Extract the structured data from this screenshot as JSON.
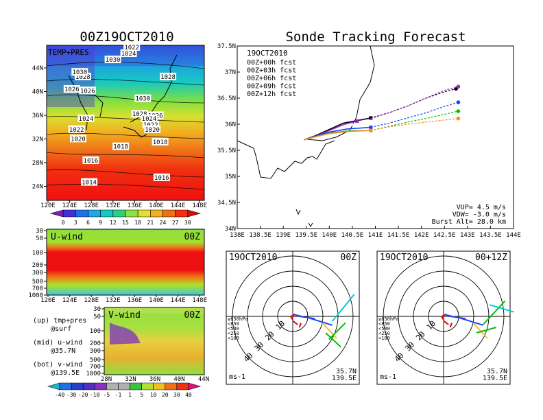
{
  "left": {
    "title": "00Z19OCT2010",
    "map_label": "TEMP+PRES",
    "lon_ticks": [
      "120E",
      "124E",
      "128E",
      "132E",
      "136E",
      "140E",
      "144E",
      "148E"
    ],
    "lat_ticks": [
      "44N",
      "40N",
      "36N",
      "32N",
      "28N",
      "24N"
    ],
    "isobars": [
      {
        "label": "1022",
        "col": 0.54,
        "row": 0.0
      },
      {
        "label": "1024",
        "col": 0.52,
        "row": 0.04
      },
      {
        "label": "1030",
        "col": 0.42,
        "row": 0.08
      },
      {
        "label": "1028",
        "col": 0.23,
        "row": 0.19
      },
      {
        "label": "1030",
        "col": 0.21,
        "row": 0.16
      },
      {
        "label": "1028",
        "col": 0.77,
        "row": 0.19
      },
      {
        "label": "1026",
        "col": 0.16,
        "row": 0.27
      },
      {
        "label": "1026",
        "col": 0.26,
        "row": 0.28
      },
      {
        "label": "1030",
        "col": 0.61,
        "row": 0.33
      },
      {
        "label": "1024",
        "col": 0.25,
        "row": 0.46
      },
      {
        "label": "1028",
        "col": 0.59,
        "row": 0.43
      },
      {
        "label": "1026",
        "col": 0.69,
        "row": 0.44
      },
      {
        "label": "1024",
        "col": 0.65,
        "row": 0.46
      },
      {
        "label": "1022",
        "col": 0.66,
        "row": 0.5
      },
      {
        "label": "1022",
        "col": 0.19,
        "row": 0.53
      },
      {
        "label": "1020",
        "col": 0.67,
        "row": 0.53
      },
      {
        "label": "1020",
        "col": 0.2,
        "row": 0.59
      },
      {
        "label": "1018",
        "col": 0.72,
        "row": 0.61
      },
      {
        "label": "1018",
        "col": 0.47,
        "row": 0.64
      },
      {
        "label": "1016",
        "col": 0.28,
        "row": 0.73
      },
      {
        "label": "1016",
        "col": 0.73,
        "row": 0.84
      },
      {
        "label": "1014",
        "col": 0.27,
        "row": 0.87
      }
    ],
    "temp_colorbar": [
      "0",
      "3",
      "6",
      "9",
      "12",
      "15",
      "18",
      "21",
      "24",
      "27",
      "30"
    ],
    "uwind": {
      "title": "U-wind",
      "time": "00Z",
      "levels": [
        "30",
        "50",
        "100",
        "200",
        "300",
        "500",
        "700",
        "1000"
      ],
      "lon_ticks": [
        "120E",
        "124E",
        "128E",
        "132E",
        "136E",
        "140E",
        "144E",
        "148E"
      ]
    },
    "vwind": {
      "title": "V-wind",
      "time": "00Z",
      "levels": [
        "30",
        "50",
        "100",
        "200",
        "300",
        "500",
        "700",
        "1000"
      ],
      "lat_ticks": [
        "28N",
        "32N",
        "36N",
        "40N",
        "44N"
      ]
    },
    "notes": [
      {
        "a": "(up) tmp+pres",
        "b": "@surf"
      },
      {
        "a": "(mid) u-wind",
        "b": "@35.7N"
      },
      {
        "a": "(bot) v-wind",
        "b": "@139.5E"
      }
    ],
    "wind_colorbar": [
      "-40",
      "-30",
      "-20",
      "-10",
      "-5",
      "-1",
      "1",
      "5",
      "10",
      "20",
      "30",
      "40"
    ]
  },
  "track": {
    "title": "Sonde Tracking Forecast",
    "date": "19OCT2010",
    "lon_ticks": [
      "138E",
      "138.5E",
      "139E",
      "139.5E",
      "140E",
      "140.5E",
      "141E",
      "141.5E",
      "142E",
      "142.5E",
      "143E",
      "143.5E",
      "144E"
    ],
    "lat_ticks": [
      "37.5N",
      "37N",
      "36.5N",
      "36N",
      "35.5N",
      "35N",
      "34.5N",
      "34N"
    ],
    "legend": [
      {
        "label": "00Z+00h fcst",
        "color": "#000000"
      },
      {
        "label": "00Z+03h fcst",
        "color": "#a020c0"
      },
      {
        "label": "00Z+06h fcst",
        "color": "#1e3cff"
      },
      {
        "label": "00Z+09h fcst",
        "color": "#00c000"
      },
      {
        "label": "00Z+12h fcst",
        "color": "#ff8c1e"
      }
    ],
    "params": [
      "VUP=  4.5 m/s",
      "VDW= -3.0 m/s",
      "Burst Alt= 28.0 km"
    ]
  },
  "hodographs": [
    {
      "date": "19OCT2010",
      "time": "00Z",
      "lat": "35.7N",
      "lon": "139.5E",
      "unit": "ms-1"
    },
    {
      "date": "19OCT2010",
      "time": "00+12Z",
      "lat": "35.7N",
      "lon": "139.5E",
      "unit": "ms-1"
    }
  ],
  "hodo_rings": [
    "10",
    "20",
    "30",
    "40"
  ],
  "hodo_legend": [
    {
      "label": "≥850hPa",
      "color": "#e00000"
    },
    {
      "label": "<850",
      "color": "#ffa000"
    },
    {
      "label": "<500",
      "color": "#00c000"
    },
    {
      "label": "<250",
      "color": "#00c0e0"
    },
    {
      "label": "<100",
      "color": "#2040ff"
    }
  ],
  "chart_data": [
    {
      "type": "line",
      "title": "Sonde Tracking Forecast",
      "xlabel": "",
      "ylabel": "",
      "xlim": [
        138.0,
        144.0
      ],
      "ylim": [
        34.0,
        37.5
      ],
      "series": [
        {
          "name": "00Z+00h fcst",
          "color": "#000000",
          "x": [
            139.45,
            139.7,
            140.0,
            140.3,
            140.6,
            140.9,
            141.3,
            141.7,
            142.1,
            142.5,
            142.75
          ],
          "y": [
            35.7,
            35.78,
            35.9,
            36.02,
            36.07,
            36.12,
            36.22,
            36.35,
            36.5,
            36.62,
            36.68
          ]
        },
        {
          "name": "00Z+03h fcst",
          "color": "#a020c0",
          "x": [
            139.45,
            139.7,
            140.0,
            140.3,
            140.6,
            140.9,
            141.3,
            141.7,
            142.1,
            142.5,
            142.8
          ],
          "y": [
            35.7,
            35.77,
            35.88,
            35.99,
            36.06,
            36.11,
            36.22,
            36.35,
            36.5,
            36.65,
            36.72
          ]
        },
        {
          "name": "00Z+06h fcst",
          "color": "#1e3cff",
          "x": [
            139.45,
            139.7,
            140.0,
            140.4,
            140.9,
            141.3,
            141.7,
            142.1,
            142.5,
            142.8
          ],
          "y": [
            35.7,
            35.77,
            35.85,
            35.91,
            35.94,
            36.02,
            36.12,
            36.22,
            36.34,
            36.42
          ]
        },
        {
          "name": "00Z+09h fcst",
          "color": "#00c000",
          "x": [
            139.45,
            139.7,
            140.0,
            140.4,
            140.9,
            141.3,
            141.7,
            142.1,
            142.5,
            142.8
          ],
          "y": [
            35.7,
            35.76,
            35.83,
            35.87,
            35.88,
            35.96,
            36.04,
            36.11,
            36.19,
            36.25
          ]
        },
        {
          "name": "00Z+12h fcst",
          "color": "#ff8c1e",
          "x": [
            139.45,
            139.7,
            140.0,
            140.4,
            140.9,
            141.3,
            141.7,
            142.1,
            142.5,
            142.8
          ],
          "y": [
            35.7,
            35.76,
            35.82,
            35.86,
            35.88,
            35.95,
            36.0,
            36.04,
            36.08,
            36.11
          ]
        }
      ]
    }
  ]
}
